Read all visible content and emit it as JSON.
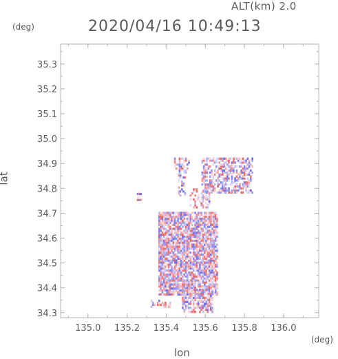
{
  "header": {
    "alt_label": "ALT(km) 2.0",
    "timestamp": "2020/04/16 10:49:13"
  },
  "axes": {
    "y_unit": "(deg)",
    "x_unit": "(deg)",
    "x_label": "lon",
    "y_label": "lat"
  },
  "colors": {
    "positive": "#e85050",
    "negative": "#5a5ae8",
    "frame": "#b0b0b0",
    "text": "#5a5a5a"
  },
  "chart_data": {
    "type": "heatmap",
    "title": "2020/04/16 10:49:13",
    "subtitle": "ALT(km) 2.0",
    "xlabel": "lon",
    "ylabel": "lat",
    "xlim": [
      134.86,
      136.18
    ],
    "ylim": [
      34.28,
      35.38
    ],
    "xticks": [
      135.0,
      135.2,
      135.4,
      135.6,
      135.8,
      136.0
    ],
    "xtick_labels": [
      "135.0",
      "135.2",
      "135.4",
      "135.6",
      "135.8",
      "136.0"
    ],
    "yticks": [
      34.3,
      34.4,
      34.5,
      34.6,
      34.7,
      34.8,
      34.9,
      35.0,
      35.1,
      35.2,
      35.3
    ],
    "ytick_labels": [
      "34.3",
      "34.4",
      "34.5",
      "34.6",
      "34.7",
      "34.8",
      "34.9",
      "35.0",
      "35.1",
      "35.2",
      "35.3"
    ],
    "regions": [
      {
        "lon": [
          135.36,
          135.66
        ],
        "lat": [
          34.37,
          34.7
        ],
        "density": 0.85
      },
      {
        "lon": [
          135.48,
          135.64
        ],
        "lat": [
          34.3,
          34.4
        ],
        "density": 0.6
      },
      {
        "lon": [
          135.32,
          135.42
        ],
        "lat": [
          34.32,
          34.35
        ],
        "density": 0.5
      },
      {
        "lon": [
          135.58,
          135.84
        ],
        "lat": [
          34.78,
          34.92
        ],
        "density": 0.55
      },
      {
        "lon": [
          135.44,
          135.52
        ],
        "lat": [
          34.86,
          34.92
        ],
        "density": 0.4
      },
      {
        "lon": [
          135.25,
          135.27
        ],
        "lat": [
          34.75,
          34.78
        ],
        "density": 0.6
      },
      {
        "lon": [
          135.52,
          135.62
        ],
        "lat": [
          34.72,
          34.8
        ],
        "density": 0.35
      },
      {
        "lon": [
          135.46,
          135.5
        ],
        "lat": [
          34.76,
          34.86
        ],
        "density": 0.3
      }
    ]
  }
}
